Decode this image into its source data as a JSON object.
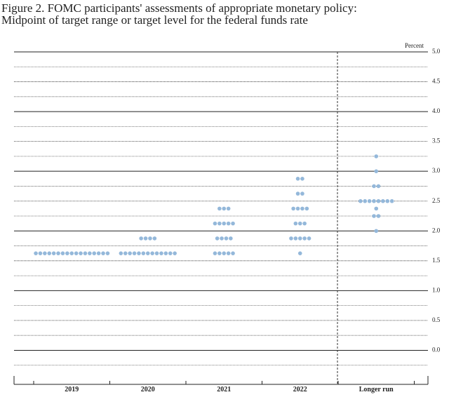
{
  "chart_data": {
    "type": "dot",
    "title": "Figure 2. FOMC participants' assessments of appropriate monetary policy:",
    "subtitle": "Midpoint of target range or target level for the federal funds rate",
    "y_label": "Percent",
    "color": "#94b8da",
    "categories": [
      "2019",
      "2020",
      "2021",
      "2022",
      "Longer run"
    ],
    "groups": [
      [
        {
          "value": 1.625,
          "count": 17
        }
      ],
      [
        {
          "value": 1.875,
          "count": 4
        },
        {
          "value": 1.625,
          "count": 13
        }
      ],
      [
        {
          "value": 2.375,
          "count": 3
        },
        {
          "value": 2.125,
          "count": 5
        },
        {
          "value": 1.875,
          "count": 4
        },
        {
          "value": 1.625,
          "count": 5
        }
      ],
      [
        {
          "value": 2.875,
          "count": 2
        },
        {
          "value": 2.625,
          "count": 2
        },
        {
          "value": 2.375,
          "count": 4
        },
        {
          "value": 2.125,
          "count": 3
        },
        {
          "value": 1.875,
          "count": 5
        },
        {
          "value": 1.625,
          "count": 1
        }
      ],
      [
        {
          "value": 3.25,
          "count": 1
        },
        {
          "value": 3.0,
          "count": 1
        },
        {
          "value": 2.75,
          "count": 2
        },
        {
          "value": 2.5,
          "count": 8
        },
        {
          "value": 2.375,
          "count": 1
        },
        {
          "value": 2.25,
          "count": 2
        },
        {
          "value": 2.0,
          "count": 1
        }
      ]
    ],
    "ylim": [
      -0.5,
      5.0
    ],
    "yticks": [
      {
        "value": 0,
        "label": "0.0"
      },
      {
        "value": 0.5,
        "label": "0.5"
      },
      {
        "value": 1,
        "label": "1.0"
      },
      {
        "value": 1.5,
        "label": "1.5"
      },
      {
        "value": 2,
        "label": "2.0"
      },
      {
        "value": 2.5,
        "label": "2.5"
      },
      {
        "value": 3,
        "label": "3.0"
      },
      {
        "value": 3.5,
        "label": "3.5"
      },
      {
        "value": 4,
        "label": "4.0"
      },
      {
        "value": 4.5,
        "label": "4.5"
      },
      {
        "value": 5,
        "label": "5.0"
      }
    ],
    "grid": true
  }
}
